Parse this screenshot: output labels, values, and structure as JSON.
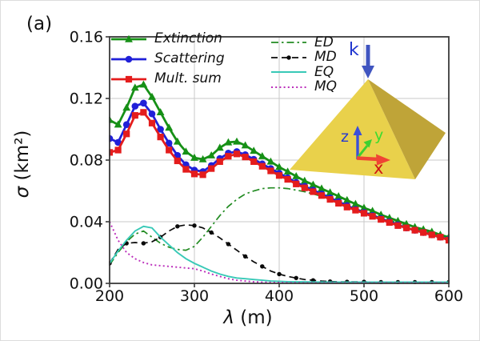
{
  "figure": {
    "panel_label": "(a)",
    "background_color": "#ffffff"
  },
  "chart_data": {
    "type": "line",
    "title": "",
    "xlabel": {
      "symbol": "λ",
      "unit": " (m)"
    },
    "ylabel": {
      "symbol": "σ",
      "unit": " (km²)"
    },
    "xlim": [
      200,
      600
    ],
    "ylim": [
      0.0,
      0.16
    ],
    "grid": true,
    "grid_color": "#c9c9c9",
    "spine_color": "#3a3a3a",
    "tick_text_color": "#111111",
    "legend_position": "upper left, two groups, no frame",
    "xticks": {
      "values": [
        200,
        300,
        400,
        500,
        600
      ],
      "labels": [
        "200",
        "300",
        "400",
        "500",
        "600"
      ]
    },
    "yticks": {
      "values": [
        0.0,
        0.04,
        0.08,
        0.12,
        0.16
      ],
      "labels": [
        "0.00",
        "0.04",
        "0.08",
        "0.12",
        "0.16"
      ]
    },
    "x": [
      200,
      210,
      220,
      230,
      240,
      250,
      260,
      270,
      280,
      290,
      300,
      310,
      320,
      330,
      340,
      350,
      360,
      370,
      380,
      390,
      400,
      410,
      420,
      430,
      440,
      450,
      460,
      470,
      480,
      490,
      500,
      510,
      520,
      530,
      540,
      550,
      560,
      570,
      580,
      590,
      600
    ],
    "series": [
      {
        "name": "Extinction",
        "color": "#169016",
        "linewidth": 2.8,
        "dash": null,
        "marker": "triangle",
        "markevery": 1,
        "legend_group": 1,
        "values": [
          0.106,
          0.103,
          0.114,
          0.127,
          0.129,
          0.121,
          0.111,
          0.101,
          0.092,
          0.0855,
          0.0815,
          0.0805,
          0.083,
          0.088,
          0.0915,
          0.092,
          0.0895,
          0.086,
          0.0825,
          0.079,
          0.0755,
          0.0725,
          0.0695,
          0.0665,
          0.064,
          0.0615,
          0.059,
          0.0565,
          0.054,
          0.0515,
          0.049,
          0.047,
          0.0445,
          0.0425,
          0.0405,
          0.0385,
          0.0365,
          0.035,
          0.0335,
          0.0315,
          0.03
        ]
      },
      {
        "name": "Scattering",
        "color": "#2020d8",
        "linewidth": 2.8,
        "dash": null,
        "marker": "circle",
        "markevery": 1,
        "legend_group": 1,
        "values": [
          0.094,
          0.0915,
          0.103,
          0.115,
          0.117,
          0.11,
          0.1,
          0.091,
          0.083,
          0.077,
          0.0735,
          0.0725,
          0.0765,
          0.081,
          0.0845,
          0.0855,
          0.0835,
          0.0805,
          0.0775,
          0.0745,
          0.0715,
          0.0685,
          0.0655,
          0.063,
          0.0605,
          0.058,
          0.0555,
          0.053,
          0.0505,
          0.048,
          0.046,
          0.044,
          0.042,
          0.04,
          0.038,
          0.036,
          0.0345,
          0.033,
          0.0315,
          0.03,
          0.0285
        ]
      },
      {
        "name": "Mult. sum",
        "color": "#e41c1c",
        "linewidth": 2.8,
        "dash": null,
        "marker": "square",
        "markevery": 1,
        "legend_group": 1,
        "values": [
          0.085,
          0.0865,
          0.097,
          0.109,
          0.111,
          0.104,
          0.095,
          0.0865,
          0.0795,
          0.074,
          0.071,
          0.0705,
          0.0745,
          0.079,
          0.0825,
          0.084,
          0.082,
          0.079,
          0.076,
          0.073,
          0.07,
          0.0675,
          0.0645,
          0.062,
          0.0595,
          0.057,
          0.0545,
          0.052,
          0.0495,
          0.0475,
          0.0455,
          0.0435,
          0.0415,
          0.0395,
          0.0375,
          0.036,
          0.0345,
          0.033,
          0.0315,
          0.03,
          0.028
        ]
      },
      {
        "name": "ED",
        "color": "#228b22",
        "linewidth": 1.7,
        "dash": "9 4 2.5 4",
        "marker": null,
        "markevery": 0,
        "legend_group": 2,
        "values": [
          0.012,
          0.02,
          0.027,
          0.032,
          0.034,
          0.03,
          0.026,
          0.0235,
          0.022,
          0.0215,
          0.024,
          0.03,
          0.037,
          0.044,
          0.05,
          0.0545,
          0.058,
          0.06,
          0.0615,
          0.062,
          0.062,
          0.0615,
          0.0605,
          0.0595,
          0.058,
          0.0565,
          0.0545,
          0.0525,
          0.0505,
          0.0485,
          0.0465,
          0.0445,
          0.0425,
          0.041,
          0.039,
          0.0375,
          0.0355,
          0.034,
          0.0325,
          0.031,
          0.0295
        ]
      },
      {
        "name": "MD",
        "color": "#0a0a0a",
        "linewidth": 1.7,
        "dash": "8 5",
        "marker": "dot",
        "markevery": 2,
        "legend_group": 2,
        "values": [
          0.013,
          0.022,
          0.026,
          0.0265,
          0.026,
          0.027,
          0.03,
          0.034,
          0.037,
          0.038,
          0.0375,
          0.036,
          0.033,
          0.0295,
          0.0255,
          0.0215,
          0.0175,
          0.014,
          0.011,
          0.008,
          0.006,
          0.0045,
          0.0035,
          0.0025,
          0.002,
          0.0015,
          0.0012,
          0.001,
          0.001,
          0.001,
          0.001,
          0.0008,
          0.0008,
          0.0008,
          0.0008,
          0.0008,
          0.0008,
          0.0008,
          0.0008,
          0.0008,
          0.0008
        ]
      },
      {
        "name": "EQ",
        "color": "#38c9b7",
        "linewidth": 1.9,
        "dash": null,
        "marker": null,
        "markevery": 0,
        "legend_group": 2,
        "values": [
          0.013,
          0.021,
          0.028,
          0.034,
          0.037,
          0.036,
          0.03,
          0.025,
          0.02,
          0.016,
          0.013,
          0.0105,
          0.008,
          0.006,
          0.0045,
          0.0035,
          0.003,
          0.0025,
          0.002,
          0.0015,
          0.0013,
          0.0011,
          0.001,
          0.001,
          0.0009,
          0.0009,
          0.0008,
          0.0008,
          0.0008,
          0.0008,
          0.0008,
          0.0008,
          0.0008,
          0.0008,
          0.0008,
          0.0008,
          0.0008,
          0.0008,
          0.0008,
          0.0008,
          0.0008
        ]
      },
      {
        "name": "MQ",
        "color": "#bb2ebb",
        "linewidth": 1.9,
        "dash": "2 3.2",
        "marker": null,
        "markevery": 0,
        "legend_group": 2,
        "values": [
          0.04,
          0.028,
          0.02,
          0.016,
          0.0135,
          0.012,
          0.0115,
          0.011,
          0.0105,
          0.01,
          0.0095,
          0.008,
          0.006,
          0.0045,
          0.003,
          0.002,
          0.0015,
          0.001,
          0.0008,
          0.0006,
          0.0005,
          0.0004,
          0.0004,
          0.0003,
          0.0003,
          0.0003,
          0.0003,
          0.0003,
          0.0003,
          0.0003,
          0.0003,
          0.0003,
          0.0003,
          0.0003,
          0.0003,
          0.0003,
          0.0003,
          0.0003,
          0.0003,
          0.0003,
          0.0003
        ]
      }
    ]
  },
  "inset": {
    "k_label": "k",
    "x_label": "x",
    "y_label": "y",
    "z_label": "z",
    "colors": {
      "pyramid_front": "#e9d14b",
      "pyramid_right": "#bfa438",
      "k_arrow": "#4055c0",
      "k_text": "#1f35cf",
      "z_axis": "#3a4fd8",
      "z_text": "#2739cf",
      "y_axis": "#3dd030",
      "y_text": "#3bdc2e",
      "x_axis": "#f04434",
      "x_text": "#d01414"
    }
  }
}
